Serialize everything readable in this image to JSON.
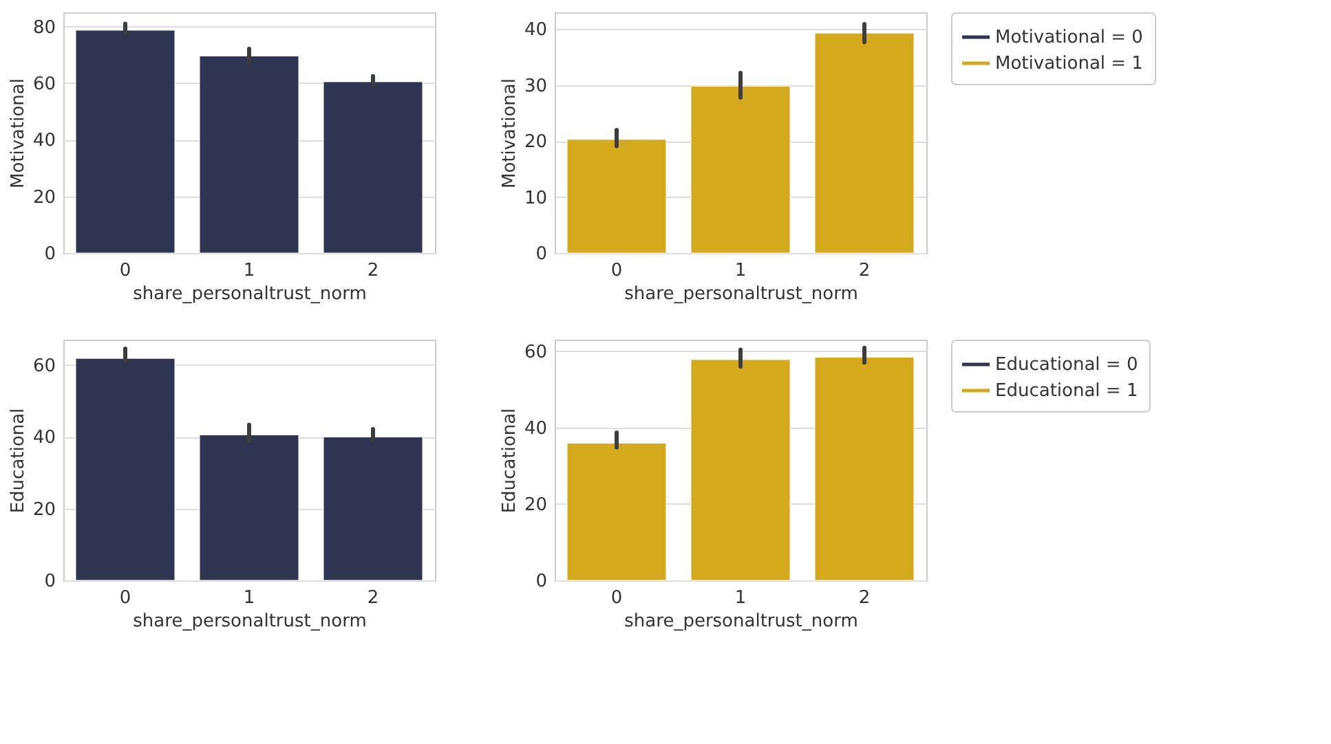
{
  "chart_data": [
    {
      "type": "bar",
      "categories": [
        "0",
        "1",
        "2"
      ],
      "xlabel": "share_personaltrust_norm",
      "ylabel": "Motivational",
      "ylim": [
        0,
        85
      ],
      "yticks": [
        0,
        20,
        40,
        60,
        80
      ],
      "grid": "y",
      "legend": false,
      "series": [
        {
          "name": "Motivational = 0",
          "color": "#2d3550",
          "values": [
            78.7,
            69.6,
            60.5
          ],
          "errors": [
            [
              77.7,
              81.0
            ],
            [
              67.0,
              72.1
            ],
            [
              59.3,
              62.5
            ]
          ]
        }
      ]
    },
    {
      "type": "bar",
      "categories": [
        "0",
        "1",
        "2"
      ],
      "xlabel": "share_personaltrust_norm",
      "ylabel": "Motivational",
      "ylim": [
        0,
        43
      ],
      "yticks": [
        0,
        10,
        20,
        30,
        40
      ],
      "grid": "y",
      "legend": "right",
      "series": [
        {
          "name": "Motivational = 1",
          "color": "#d5a91c",
          "values": [
            20.3,
            29.8,
            39.3
          ],
          "errors": [
            [
              19.1,
              22.0
            ],
            [
              27.8,
              32.2
            ],
            [
              37.7,
              40.9
            ]
          ]
        }
      ]
    },
    {
      "type": "bar",
      "categories": [
        "0",
        "1",
        "2"
      ],
      "xlabel": "share_personaltrust_norm",
      "ylabel": "Educational",
      "ylim": [
        0,
        67
      ],
      "yticks": [
        0,
        20,
        40,
        60
      ],
      "grid": "y",
      "legend": false,
      "series": [
        {
          "name": "Educational = 0",
          "color": "#2d3550",
          "values": [
            61.8,
            40.5,
            39.9
          ],
          "errors": [
            [
              60.9,
              64.5
            ],
            [
              38.8,
              43.3
            ],
            [
              39.0,
              42.1
            ]
          ]
        }
      ]
    },
    {
      "type": "bar",
      "categories": [
        "0",
        "1",
        "2"
      ],
      "xlabel": "share_personaltrust_norm",
      "ylabel": "Educational",
      "ylim": [
        0,
        63
      ],
      "yticks": [
        0,
        20,
        40,
        60
      ],
      "grid": "y",
      "legend": "right",
      "series": [
        {
          "name": "Educational = 1",
          "color": "#d5a91c",
          "values": [
            35.9,
            57.8,
            58.4
          ],
          "errors": [
            [
              34.8,
              38.7
            ],
            [
              56.0,
              60.4
            ],
            [
              57.0,
              60.9
            ]
          ]
        }
      ]
    }
  ]
}
